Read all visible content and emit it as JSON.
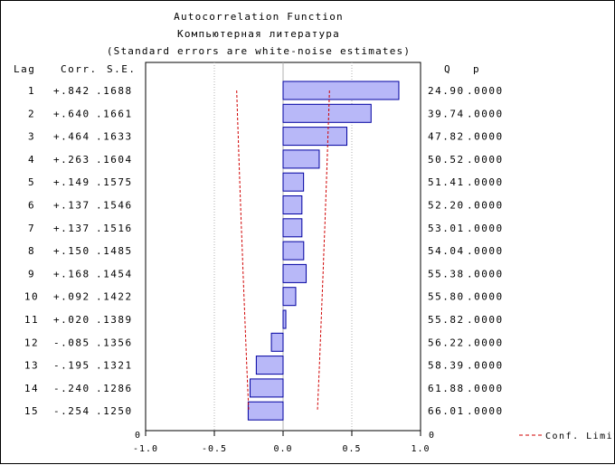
{
  "titles": {
    "line1": "Autocorrelation Function",
    "line2": "Компьютерная литература",
    "line3": "(Standard errors are white-noise estimates)"
  },
  "headers": {
    "lag": "Lag",
    "corr": "Corr.",
    "se": "S.E.",
    "q": "Q",
    "p": "p"
  },
  "legend": {
    "label": "Conf. Limit"
  },
  "colors": {
    "bar_fill": "#b8b8f8",
    "bar_stroke": "#0000a0",
    "conf_limit": "#d00000",
    "grid": "#b0b0b0"
  },
  "chart_data": {
    "type": "bar",
    "orientation": "horizontal",
    "xlim": [
      -1.0,
      1.0
    ],
    "xticks": [
      "-1.0",
      "-0.5",
      "0.0",
      "0.5",
      "1.0"
    ],
    "bottom_row_labels": {
      "lag": "0",
      "q": "0"
    },
    "rows": [
      {
        "lag": "1",
        "corr_text": "+.842",
        "se_text": ".1688",
        "q_text": "24.90",
        "p_text": ".0000",
        "corr": 0.842,
        "se": 0.1688
      },
      {
        "lag": "2",
        "corr_text": "+.640",
        "se_text": ".1661",
        "q_text": "39.74",
        "p_text": ".0000",
        "corr": 0.64,
        "se": 0.1661
      },
      {
        "lag": "3",
        "corr_text": "+.464",
        "se_text": ".1633",
        "q_text": "47.82",
        "p_text": ".0000",
        "corr": 0.464,
        "se": 0.1633
      },
      {
        "lag": "4",
        "corr_text": "+.263",
        "se_text": ".1604",
        "q_text": "50.52",
        "p_text": ".0000",
        "corr": 0.263,
        "se": 0.1604
      },
      {
        "lag": "5",
        "corr_text": "+.149",
        "se_text": ".1575",
        "q_text": "51.41",
        "p_text": ".0000",
        "corr": 0.149,
        "se": 0.1575
      },
      {
        "lag": "6",
        "corr_text": "+.137",
        "se_text": ".1546",
        "q_text": "52.20",
        "p_text": ".0000",
        "corr": 0.137,
        "se": 0.1546
      },
      {
        "lag": "7",
        "corr_text": "+.137",
        "se_text": ".1516",
        "q_text": "53.01",
        "p_text": ".0000",
        "corr": 0.137,
        "se": 0.1516
      },
      {
        "lag": "8",
        "corr_text": "+.150",
        "se_text": ".1485",
        "q_text": "54.04",
        "p_text": ".0000",
        "corr": 0.15,
        "se": 0.1485
      },
      {
        "lag": "9",
        "corr_text": "+.168",
        "se_text": ".1454",
        "q_text": "55.38",
        "p_text": ".0000",
        "corr": 0.168,
        "se": 0.1454
      },
      {
        "lag": "10",
        "corr_text": "+.092",
        "se_text": ".1422",
        "q_text": "55.80",
        "p_text": ".0000",
        "corr": 0.092,
        "se": 0.1422
      },
      {
        "lag": "11",
        "corr_text": "+.020",
        "se_text": ".1389",
        "q_text": "55.82",
        "p_text": ".0000",
        "corr": 0.02,
        "se": 0.1389
      },
      {
        "lag": "12",
        "corr_text": "-.085",
        "se_text": ".1356",
        "q_text": "56.22",
        "p_text": ".0000",
        "corr": -0.085,
        "se": 0.1356
      },
      {
        "lag": "13",
        "corr_text": "-.195",
        "se_text": ".1321",
        "q_text": "58.39",
        "p_text": ".0000",
        "corr": -0.195,
        "se": 0.1321
      },
      {
        "lag": "14",
        "corr_text": "-.240",
        "se_text": ".1286",
        "q_text": "61.88",
        "p_text": ".0000",
        "corr": -0.24,
        "se": 0.1286
      },
      {
        "lag": "15",
        "corr_text": "-.254",
        "se_text": ".1250",
        "q_text": "66.01",
        "p_text": ".0000",
        "corr": -0.254,
        "se": 0.125
      }
    ]
  }
}
